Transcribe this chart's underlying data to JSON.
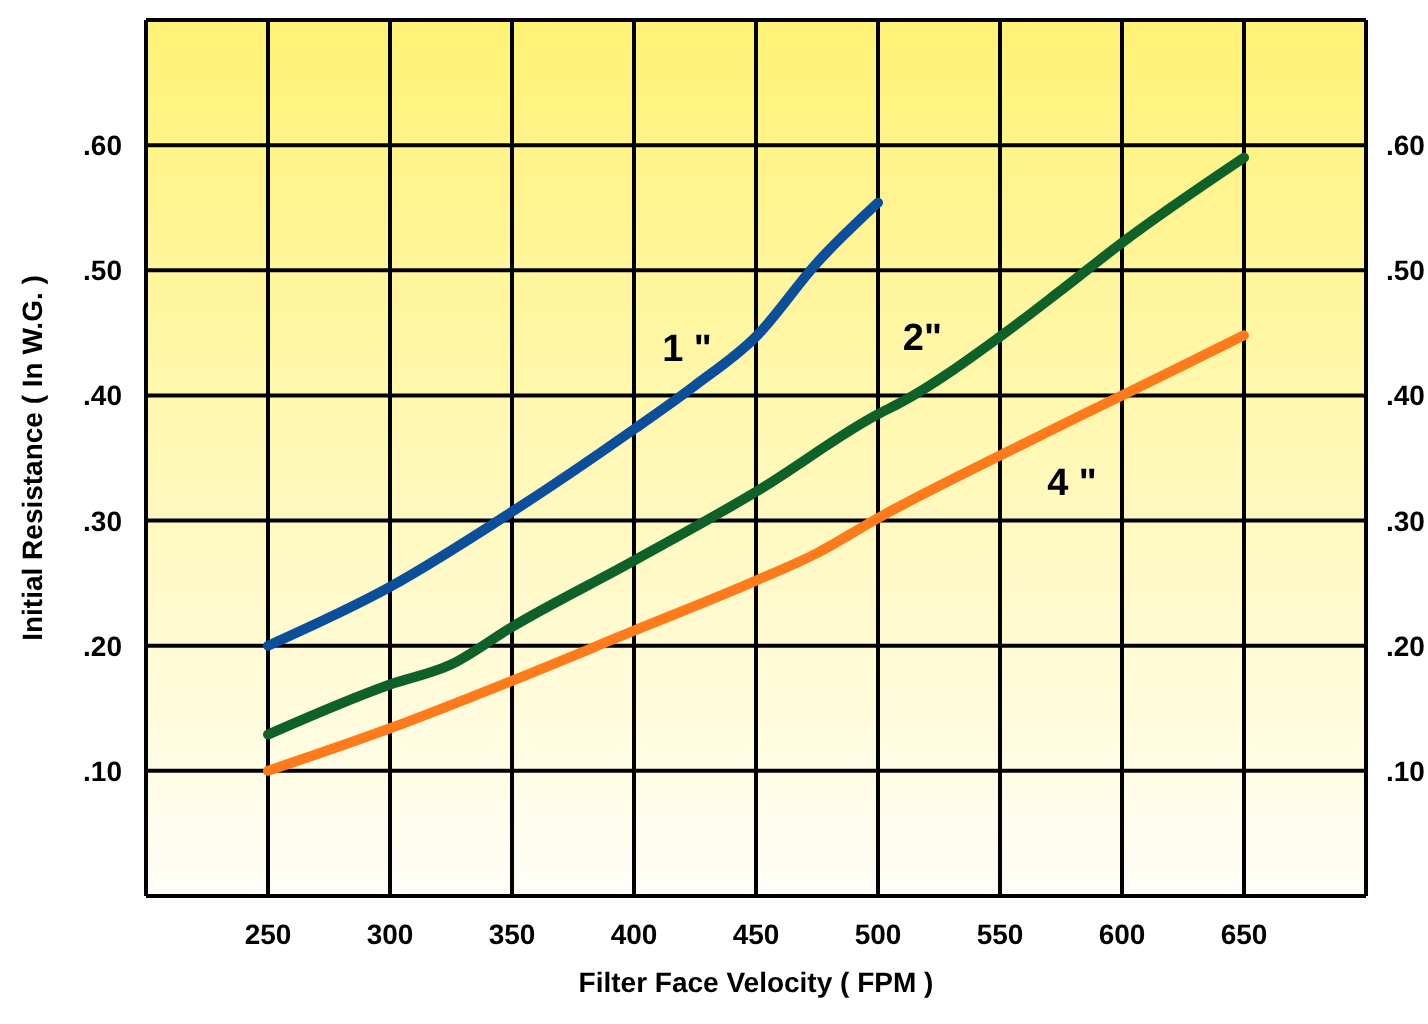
{
  "chart_data": {
    "type": "line",
    "xlabel": "Filter Face Velocity  ( FPM )",
    "ylabel": "Initial Resistance  ( In W.G. )",
    "xlim": [
      200,
      700
    ],
    "xticks": [
      250,
      300,
      350,
      400,
      450,
      500,
      550,
      600,
      650
    ],
    "ylim": [
      0,
      0.7
    ],
    "yticks": [
      {
        "value": 0.1,
        "label": ".10"
      },
      {
        "value": 0.2,
        "label": ".20"
      },
      {
        "value": 0.3,
        "label": ".30"
      },
      {
        "value": 0.4,
        "label": ".40"
      },
      {
        "value": 0.5,
        "label": ".50"
      },
      {
        "value": 0.6,
        "label": ".60"
      },
      {
        "value": 0.7,
        "label": null
      }
    ],
    "y2lim": [
      0,
      0.7
    ],
    "y2ticks": [
      {
        "value": 0.1,
        "label": ".10"
      },
      {
        "value": 0.2,
        "label": ".20"
      },
      {
        "value": 0.3,
        "label": ".30"
      },
      {
        "value": 0.4,
        "label": ".40"
      },
      {
        "value": 0.5,
        "label": ".50"
      },
      {
        "value": 0.6,
        "label": ".60"
      },
      {
        "value": 0.7,
        "label": null
      }
    ],
    "grid": true,
    "legend": false,
    "marker": "none",
    "line_style": "solid",
    "series": [
      {
        "name": "1 \"",
        "color": "#0b4f9c",
        "x": [
          250,
          300,
          350,
          400,
          425,
          450,
          475,
          500
        ],
        "values": [
          0.2,
          0.247,
          0.307,
          0.373,
          0.408,
          0.447,
          0.506,
          0.554
        ]
      },
      {
        "name": "2\"",
        "color": "#0e6128",
        "x": [
          250,
          300,
          325,
          350,
          400,
          450,
          500,
          510,
          550,
          575,
          600,
          650
        ],
        "values": [
          0.129,
          0.169,
          0.185,
          0.215,
          0.268,
          0.323,
          0.385,
          0.395,
          0.447,
          0.484,
          0.522,
          0.59
        ]
      },
      {
        "name": "4 \"",
        "color": "#ff7a1a",
        "x": [
          250,
          300,
          350,
          400,
          450,
          475,
          500,
          550,
          600,
          650
        ],
        "values": [
          0.1,
          0.134,
          0.172,
          0.212,
          0.252,
          0.274,
          0.302,
          0.352,
          0.4,
          0.448
        ]
      }
    ]
  }
}
